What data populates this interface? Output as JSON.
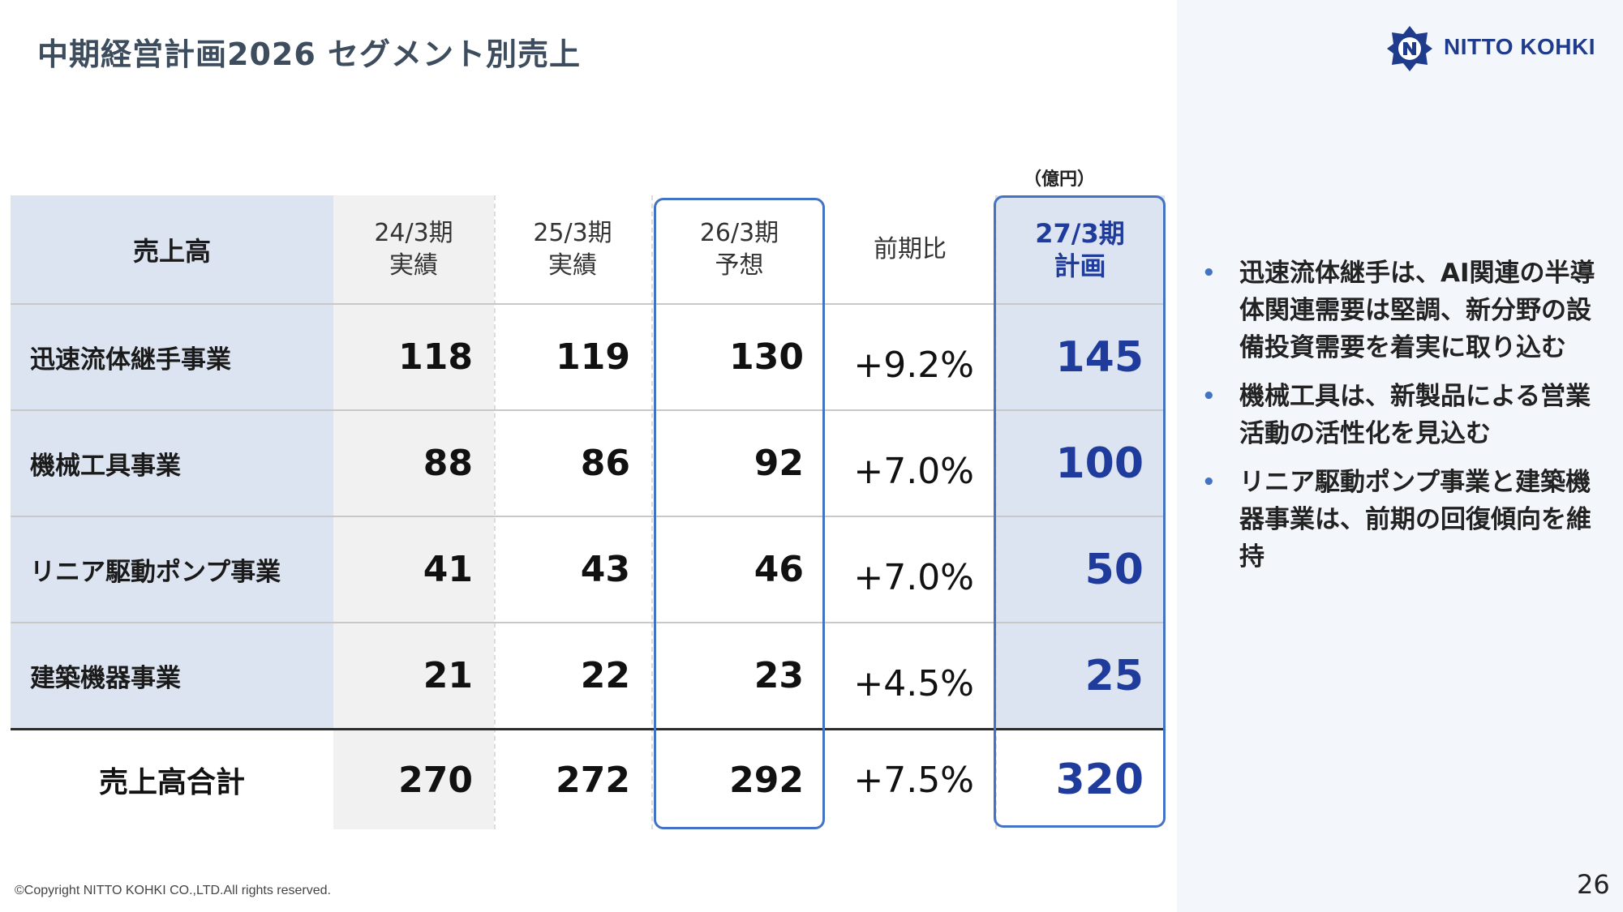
{
  "page": {
    "title": "中期経営計画2026 セグメント別売上",
    "logo_text": "NITTO KOHKI",
    "unit": "（億円）",
    "copyright": "©Copyright NITTO KOHKI CO.,LTD.All rights reserved.",
    "page_number": "26"
  },
  "colors": {
    "accent": "#4472c4",
    "plan_text": "#1f3c9c",
    "label_bg": "#dce4f2",
    "panel_bg": "#f3f6fa"
  },
  "table": {
    "headers": {
      "label": "売上高",
      "fy24_line1": "24/3期",
      "fy24_line2": "実績",
      "fy25_line1": "25/3期",
      "fy25_line2": "実績",
      "fy26_line1": "26/3期",
      "fy26_line2": "予想",
      "yoy": "前期比",
      "fy27_line1": "27/3期",
      "fy27_line2": "計画"
    },
    "rows": [
      {
        "segment": "迅速流体継手事業",
        "fy24": "118",
        "fy25": "119",
        "fy26": "130",
        "yoy": "+9.2%",
        "fy27": "145"
      },
      {
        "segment": "機械工具事業",
        "fy24": "88",
        "fy25": "86",
        "fy26": "92",
        "yoy": "+7.0%",
        "fy27": "100"
      },
      {
        "segment": "リニア駆動ポンプ事業",
        "fy24": "41",
        "fy25": "43",
        "fy26": "46",
        "yoy": "+7.0%",
        "fy27": "50"
      },
      {
        "segment": "建築機器事業",
        "fy24": "21",
        "fy25": "22",
        "fy26": "23",
        "yoy": "+4.5%",
        "fy27": "25"
      }
    ],
    "total": {
      "label": "売上高合計",
      "fy24": "270",
      "fy25": "272",
      "fy26": "292",
      "yoy": "+7.5%",
      "fy27": "320"
    }
  },
  "bullets": [
    {
      "dot": "•",
      "text": "迅速流体継手は、AI関連の半導体関連需要は堅調、新分野の設備投資需要を着実に取り込む"
    },
    {
      "dot": "•",
      "text": "機械工具は、新製品による営業活動の活性化を見込む"
    },
    {
      "dot": "•",
      "text": "リニア駆動ポンプ事業と建築機器事業は、前期の回復傾向を維持"
    }
  ]
}
